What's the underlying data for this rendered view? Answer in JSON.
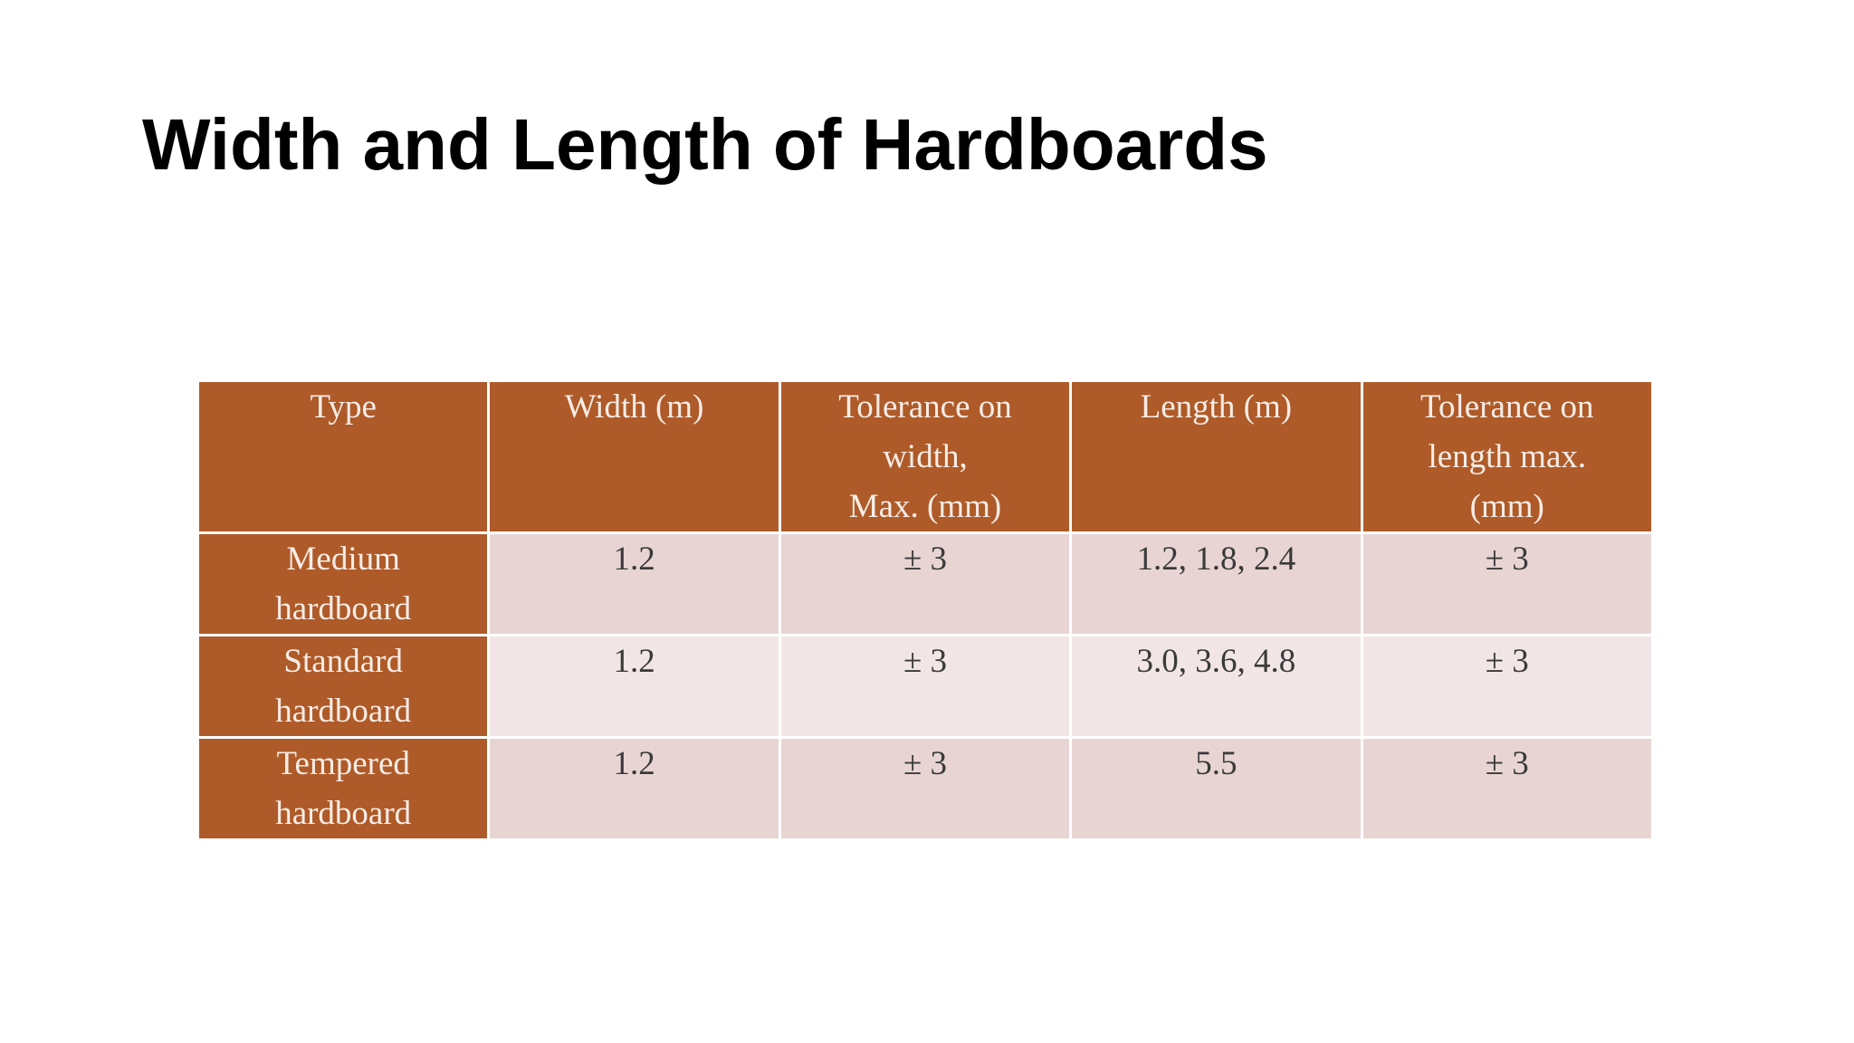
{
  "header": {
    "title": "Width and Length of Hardboards"
  },
  "table": {
    "columns": [
      "Type",
      "Width (m)",
      "Tolerance on\nwidth,\nMax. (mm)",
      "Length (m)",
      "Tolerance on\nlength max.\n(mm)"
    ],
    "rows": [
      [
        "Medium\nhardboard",
        "1.2",
        "± 3",
        "1.2, 1.8, 2.4",
        "± 3"
      ],
      [
        "Standard\nhardboard",
        "1.2",
        "± 3",
        "3.0, 3.6, 4.8",
        "± 3"
      ],
      [
        "Tempered\nhardboard",
        "1.2",
        "± 3",
        "5.5",
        "± 3"
      ]
    ]
  }
}
